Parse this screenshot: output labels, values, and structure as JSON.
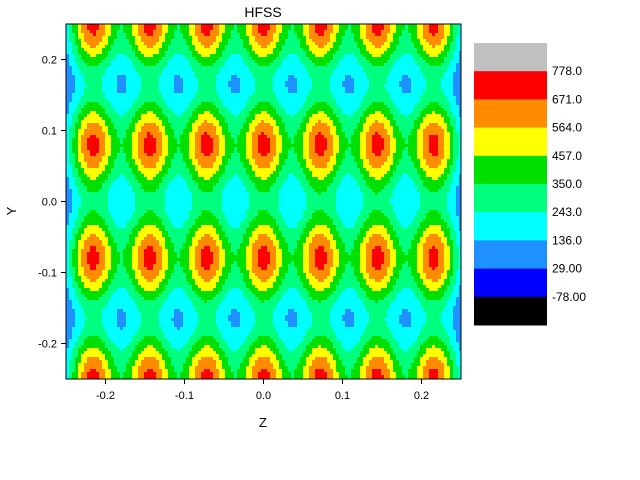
{
  "chart_data": {
    "type": "heatmap",
    "title": "HFSS",
    "xlabel": "Z",
    "ylabel": "Y",
    "xlim": [
      -0.25,
      0.25
    ],
    "ylim": [
      -0.25,
      0.25
    ],
    "x_ticks": [
      -0.2,
      -0.1,
      0.0,
      0.1,
      0.2
    ],
    "x_tick_labels": [
      "-0.2",
      "-0.1",
      "0.0",
      "0.1",
      "0.2"
    ],
    "y_ticks": [
      -0.2,
      -0.1,
      0.0,
      0.1,
      0.2
    ],
    "y_tick_labels": [
      "-0.2",
      "-0.1",
      "0.0",
      "0.1",
      "0.2"
    ],
    "grid": false,
    "legend_position": "right",
    "colorbar": {
      "levels": [
        -78.0,
        29.0,
        136.0,
        243.0,
        350.0,
        457.0,
        564.0,
        671.0,
        778.0
      ],
      "labels": [
        "-78.00",
        "29.00",
        "136.0",
        "243.0",
        "350.0",
        "457.0",
        "564.0",
        "671.0",
        "778.0"
      ],
      "colors": [
        "#000000",
        "#0000ff",
        "#1e90ff",
        "#00ffff",
        "#00ff7f",
        "#00e000",
        "#ffff00",
        "#ff8c00",
        "#ff0000",
        "#c0c0c0"
      ]
    },
    "field": {
      "peak_z": [
        -0.216,
        -0.144,
        -0.072,
        0.0,
        0.072,
        0.144,
        0.216
      ],
      "peak_y": [
        -0.08,
        0.08,
        -0.25,
        0.25
      ],
      "peak_value": 700,
      "min_value": -40,
      "valley_value": 0
    }
  }
}
